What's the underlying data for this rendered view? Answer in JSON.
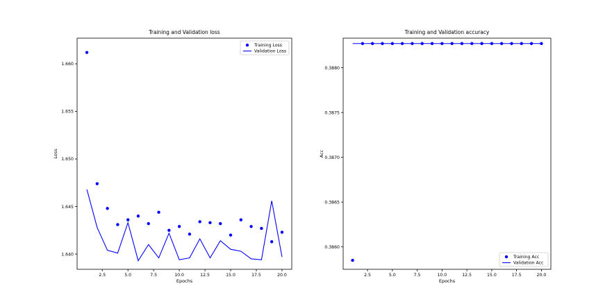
{
  "chart_data": [
    {
      "type": "line",
      "title": "Training and Validation loss",
      "xlabel": "Epochs",
      "ylabel": "Loss",
      "xlim": [
        0.05,
        20.95
      ],
      "ylim": [
        1.6384,
        1.6627
      ],
      "xticks": [
        2.5,
        5.0,
        7.5,
        10.0,
        12.5,
        15.0,
        17.5,
        20.0
      ],
      "xtick_labels": [
        "2.5",
        "5.0",
        "7.5",
        "10.0",
        "12.5",
        "15.0",
        "17.5",
        "20.0"
      ],
      "yticks": [
        1.64,
        1.645,
        1.65,
        1.655,
        1.66
      ],
      "ytick_labels": [
        "1.640",
        "1.645",
        "1.650",
        "1.655",
        "1.660"
      ],
      "grid": false,
      "legend_position": "top-right",
      "series": [
        {
          "name": "Training Loss",
          "style": "points",
          "color": "#0000ff",
          "x": [
            1,
            2,
            3,
            4,
            5,
            6,
            7,
            8,
            9,
            10,
            11,
            12,
            13,
            14,
            15,
            16,
            17,
            18,
            19,
            20
          ],
          "y": [
            1.6612,
            1.6474,
            1.6448,
            1.6431,
            1.6436,
            1.644,
            1.6432,
            1.6444,
            1.6425,
            1.6429,
            1.6421,
            1.6434,
            1.6433,
            1.6432,
            1.642,
            1.6436,
            1.6429,
            1.6427,
            1.6413,
            1.6423
          ]
        },
        {
          "name": "Validation Loss",
          "style": "line",
          "color": "#0000ff",
          "x": [
            1,
            2,
            3,
            4,
            5,
            6,
            7,
            8,
            9,
            10,
            11,
            12,
            13,
            14,
            15,
            16,
            17,
            18,
            19,
            20
          ],
          "y": [
            1.6468,
            1.6428,
            1.6404,
            1.6401,
            1.6433,
            1.6393,
            1.641,
            1.6396,
            1.6422,
            1.6394,
            1.6396,
            1.6416,
            1.6396,
            1.6414,
            1.6405,
            1.6403,
            1.6395,
            1.6394,
            1.6456,
            1.6397
          ]
        }
      ]
    },
    {
      "type": "line",
      "title": "Training and Validation accuracy",
      "xlabel": "Epochs",
      "ylabel": "Acc",
      "xlim": [
        0.05,
        20.95
      ],
      "ylim": [
        0.38575,
        0.38833
      ],
      "xticks": [
        2.5,
        5.0,
        7.5,
        10.0,
        12.5,
        15.0,
        17.5,
        20.0
      ],
      "xtick_labels": [
        "2.5",
        "5.0",
        "7.5",
        "10.0",
        "12.5",
        "15.0",
        "17.5",
        "20.0"
      ],
      "yticks": [
        0.386,
        0.3865,
        0.387,
        0.3875,
        0.388
      ],
      "ytick_labels": [
        "0.3860",
        "0.3865",
        "0.3870",
        "0.3875",
        "0.3880"
      ],
      "grid": false,
      "legend_position": "bottom-right",
      "series": [
        {
          "name": "Training Acc",
          "style": "points",
          "color": "#0000ff",
          "x": [
            1,
            2,
            3,
            4,
            5,
            6,
            7,
            8,
            9,
            10,
            11,
            12,
            13,
            14,
            15,
            16,
            17,
            18,
            19,
            20
          ],
          "y": [
            0.38585,
            0.38827,
            0.38827,
            0.38827,
            0.38827,
            0.38827,
            0.38827,
            0.38827,
            0.38827,
            0.38827,
            0.38827,
            0.38827,
            0.38827,
            0.38827,
            0.38827,
            0.38827,
            0.38827,
            0.38827,
            0.38827,
            0.38827
          ]
        },
        {
          "name": "Validation Acc",
          "style": "line",
          "color": "#0000ff",
          "x": [
            1,
            2,
            3,
            4,
            5,
            6,
            7,
            8,
            9,
            10,
            11,
            12,
            13,
            14,
            15,
            16,
            17,
            18,
            19,
            20
          ],
          "y": [
            0.38827,
            0.38827,
            0.38827,
            0.38827,
            0.38827,
            0.38827,
            0.38827,
            0.38827,
            0.38827,
            0.38827,
            0.38827,
            0.38827,
            0.38827,
            0.38827,
            0.38827,
            0.38827,
            0.38827,
            0.38827,
            0.38827,
            0.38827
          ]
        }
      ]
    }
  ]
}
